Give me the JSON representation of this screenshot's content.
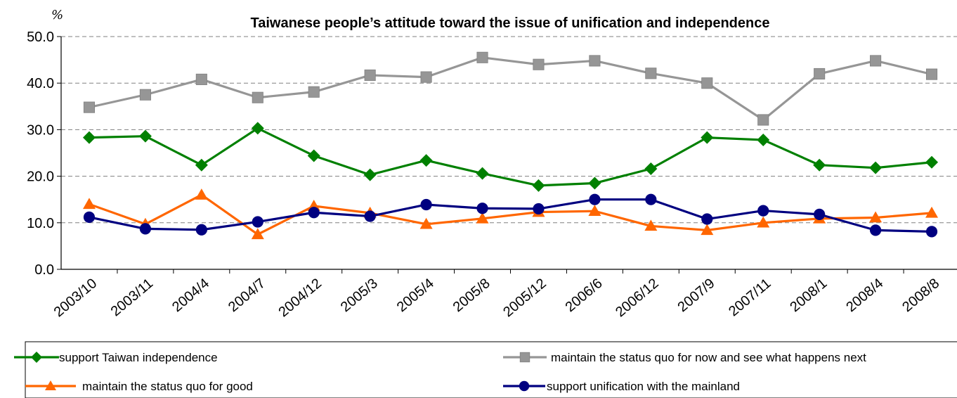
{
  "chart_data": {
    "type": "line",
    "title": "Taiwanese people’s attitude toward the issue of unification and independence",
    "ylabel": "%",
    "xlabel": "",
    "ylim": [
      0,
      50
    ],
    "yticks": [
      "0.0",
      "10.0",
      "20.0",
      "30.0",
      "40.0",
      "50.0"
    ],
    "grid": "horizontal dashed",
    "legend_position": "bottom",
    "categories": [
      "2003/10",
      "2003/11",
      "2004/4",
      "2004/7",
      "2004/12",
      "2005/3",
      "2005/4",
      "2005/8",
      "2005/12",
      "2006/6",
      "2006/12",
      "2007/9",
      "2007/11",
      "2008/1",
      "2008/4",
      "2008/8"
    ],
    "series": [
      {
        "name": "support Taiwan independence",
        "color": "#008000",
        "marker": "diamond",
        "values": [
          28.3,
          28.6,
          22.4,
          30.3,
          24.4,
          20.3,
          23.4,
          20.6,
          18.0,
          18.5,
          21.6,
          28.3,
          27.8,
          22.4,
          21.8,
          23.0
        ]
      },
      {
        "name": "maintain the status quo for now and see what happens next",
        "color": "#969696",
        "marker": "square",
        "values": [
          34.8,
          37.5,
          40.8,
          36.9,
          38.1,
          41.7,
          41.3,
          45.5,
          44.0,
          44.8,
          42.1,
          40.0,
          32.1,
          42.0,
          44.8,
          41.9
        ]
      },
      {
        "name": "maintain the status quo for good",
        "color": "#FF6600",
        "marker": "triangle",
        "values": [
          14.0,
          9.7,
          16.0,
          7.5,
          13.6,
          12.1,
          9.7,
          10.9,
          12.3,
          12.5,
          9.3,
          8.4,
          10.0,
          10.9,
          11.1,
          12.1
        ]
      },
      {
        "name": "support unification with the mainland",
        "color": "#000080",
        "marker": "circle",
        "values": [
          11.2,
          8.7,
          8.5,
          10.2,
          12.2,
          11.4,
          13.9,
          13.1,
          13.0,
          15.0,
          15.0,
          10.8,
          12.6,
          11.8,
          8.4,
          8.1
        ]
      }
    ]
  }
}
